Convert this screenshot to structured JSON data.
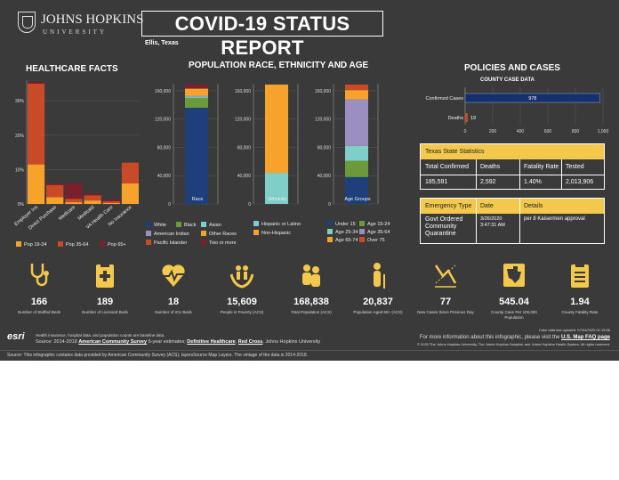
{
  "header": {
    "logo_line1": "JOHNS HOPKINS",
    "logo_line2": "UNIVERSITY",
    "title": "COVID-19 STATUS REPORT",
    "location": "Ellis, Texas"
  },
  "healthcare": {
    "title": "HEALTHCARE FACTS",
    "y_ticks": [
      "30%",
      "20%",
      "10%",
      "0%"
    ],
    "categories": [
      "Employer Ins",
      "Direct Purchase",
      "Medicare",
      "Medicaid",
      "VA Health Care",
      "No Insurance"
    ],
    "legend": [
      "Pop 19-34",
      "Pop 35-64",
      "Pop 65+"
    ],
    "colors": [
      "#f7a32b",
      "#c94a27",
      "#7a1f2b"
    ]
  },
  "population": {
    "title": "POPULATION RACE, ETHNICITY AND AGE",
    "race_ticks": [
      "160,000",
      "120,000",
      "80,000",
      "40,000",
      "0"
    ],
    "eth_ticks": [
      "160,000",
      "120,000",
      "80,000",
      "40,000",
      "0"
    ],
    "age_ticks": [
      "160,000",
      "120,000",
      "80,000",
      "40,000",
      "0"
    ],
    "race_label": "Race",
    "eth_label": "Ethnicity",
    "age_label": "Age Groups",
    "race_legend": [
      "White",
      "Black",
      "Asian",
      "American Indian",
      "Other Races",
      "Pacific Islander",
      "Two or more"
    ],
    "race_colors": [
      "#1f3f7a",
      "#6a9a3a",
      "#7fcfc8",
      "#9a8fbf",
      "#f7a32b",
      "#c94a27",
      "#7a1f2b"
    ],
    "eth_legend": [
      "Hispanic or Latino",
      "Non-Hispanic"
    ],
    "eth_colors": [
      "#7fcfc8",
      "#f7a32b"
    ],
    "age_legend": [
      "Under 15",
      "Age 15-24",
      "Age 25-34",
      "Age 35-64",
      "Age 65-74",
      "Over 75"
    ],
    "age_colors": [
      "#1f3f7a",
      "#6a9a3a",
      "#7fcfc8",
      "#9a8fbf",
      "#f7a32b",
      "#c94a27"
    ]
  },
  "policies": {
    "title": "POLICIES AND CASES",
    "subtitle": "COUNTY CASE DATA",
    "confirmed_label": "Confirmed Cases",
    "deaths_label": "Deaths",
    "confirmed_value": "978",
    "deaths_value": "19",
    "x_ticks": [
      "0",
      "200",
      "400",
      "600",
      "800",
      "1,000"
    ],
    "state_title": "Texas State Statistics",
    "state_headers": [
      "Total Confirmed",
      "Deaths",
      "Fatality Rate",
      "Tested"
    ],
    "state_values": [
      "185,591",
      "2,592",
      "1.40%",
      "2,013,906"
    ],
    "policy_headers": [
      "Emergency Type",
      "Date",
      "Details"
    ],
    "policy_type": "Govt Ordered Community Quarantine",
    "policy_date": "3/26/2020 3:47:31 AM",
    "policy_details": "per 8 Kaisermen approval"
  },
  "stats": [
    {
      "value": "166",
      "label": "Number of Staffed Beds",
      "icon": "stethoscope-icon"
    },
    {
      "value": "189",
      "label": "Number of Licensed Beds",
      "icon": "clipboard-medical-icon"
    },
    {
      "value": "18",
      "label": "Number of ICU Beds",
      "icon": "heartbeat-icon"
    },
    {
      "value": "15,609",
      "label": "People in Poverty (ACS)",
      "icon": "hands-people-icon"
    },
    {
      "value": "168,838",
      "label": "Total Population (ACS)",
      "icon": "people-icon"
    },
    {
      "value": "20,837",
      "label": "Population Aged 65+ (ACS)",
      "icon": "elderly-icon"
    },
    {
      "value": "77",
      "label": "New Cases Since Previous Day",
      "icon": "trend-chart-icon"
    },
    {
      "value": "545.04",
      "label": "County Case Per 100,000 Population",
      "icon": "map-texas-icon"
    },
    {
      "value": "1.94",
      "label": "County Fatality Rate",
      "icon": "clipboard-list-icon"
    }
  ],
  "footer": {
    "line1": "Health insurance, hospital data, and population counts are baseline data.",
    "line2_prefix": "Source: 2014-2018",
    "link1": "American Community Survey",
    "line2_mid": "5-year estimates;",
    "link2": "Definitive Healthcare",
    "link3": "Red Cross",
    "line2_suffix": ", Johns Hopkins University",
    "updated": "Case data last updated: 07/04/2020 01:15:56",
    "more_info_prefix": "For more information about this infographic, please visit the",
    "more_info_link": "U.S. Map FAQ page",
    "copyright": "© 2020 The Johns Hopkins University, The Johns Hopkins Hospital, and Johns Hopkins Health System. All rights reserved.",
    "bottom_source": "Source: This infographic contains data provided by American Community Survey (ACS), layersSource Map Layers. The vintage of the data is 2014-2018.",
    "esri": "esri"
  },
  "chart_data": [
    {
      "type": "bar",
      "title": "HEALTHCARE FACTS",
      "categories": [
        "Employer Ins",
        "Direct Purchase",
        "Medicare",
        "Medicaid",
        "VA Health Care",
        "No Insurance"
      ],
      "ylim": [
        0,
        36
      ],
      "series": [
        {
          "name": "Pop 19-34",
          "values": [
            11.5,
            2,
            0.5,
            1,
            0.3,
            6
          ]
        },
        {
          "name": "Pop 35-64",
          "values": [
            23.5,
            3.5,
            1,
            1.5,
            0.5,
            6
          ]
        },
        {
          "name": "Pop 65+",
          "values": [
            0.5,
            0.5,
            4.5,
            0.5,
            0.5,
            0
          ]
        }
      ],
      "stacked": true
    },
    {
      "type": "bar",
      "title": "Race",
      "categories": [
        "Race"
      ],
      "ylim": [
        0,
        170000
      ],
      "series": [
        {
          "name": "White",
          "values": [
            136000
          ]
        },
        {
          "name": "Black",
          "values": [
            14000
          ]
        },
        {
          "name": "Asian",
          "values": [
            2000
          ]
        },
        {
          "name": "American Indian",
          "values": [
            1000
          ]
        },
        {
          "name": "Other Races",
          "values": [
            10000
          ]
        },
        {
          "name": "Pacific Islander",
          "values": [
            200
          ]
        },
        {
          "name": "Two or more",
          "values": [
            5600
          ]
        }
      ],
      "stacked": true
    },
    {
      "type": "bar",
      "title": "Ethnicity",
      "categories": [
        "Ethnicity"
      ],
      "ylim": [
        0,
        170000
      ],
      "series": [
        {
          "name": "Hispanic or Latino",
          "values": [
            44000
          ]
        },
        {
          "name": "Non-Hispanic",
          "values": [
            124838
          ]
        }
      ],
      "stacked": true
    },
    {
      "type": "bar",
      "title": "Age Groups",
      "categories": [
        "Age Groups"
      ],
      "ylim": [
        0,
        170000
      ],
      "series": [
        {
          "name": "Under 15",
          "values": [
            38000
          ]
        },
        {
          "name": "Age 15-24",
          "values": [
            23000
          ]
        },
        {
          "name": "Age 25-34",
          "values": [
            21000
          ]
        },
        {
          "name": "Age 35-64",
          "values": [
            66000
          ]
        },
        {
          "name": "Age 65-74",
          "values": [
            13000
          ]
        },
        {
          "name": "Over 75",
          "values": [
            7838
          ]
        }
      ],
      "stacked": true
    },
    {
      "type": "bar",
      "title": "COUNTY CASE DATA",
      "orientation": "horizontal",
      "categories": [
        "Confirmed Cases",
        "Deaths"
      ],
      "values": [
        978,
        19
      ],
      "xlim": [
        0,
        1000
      ]
    }
  ]
}
